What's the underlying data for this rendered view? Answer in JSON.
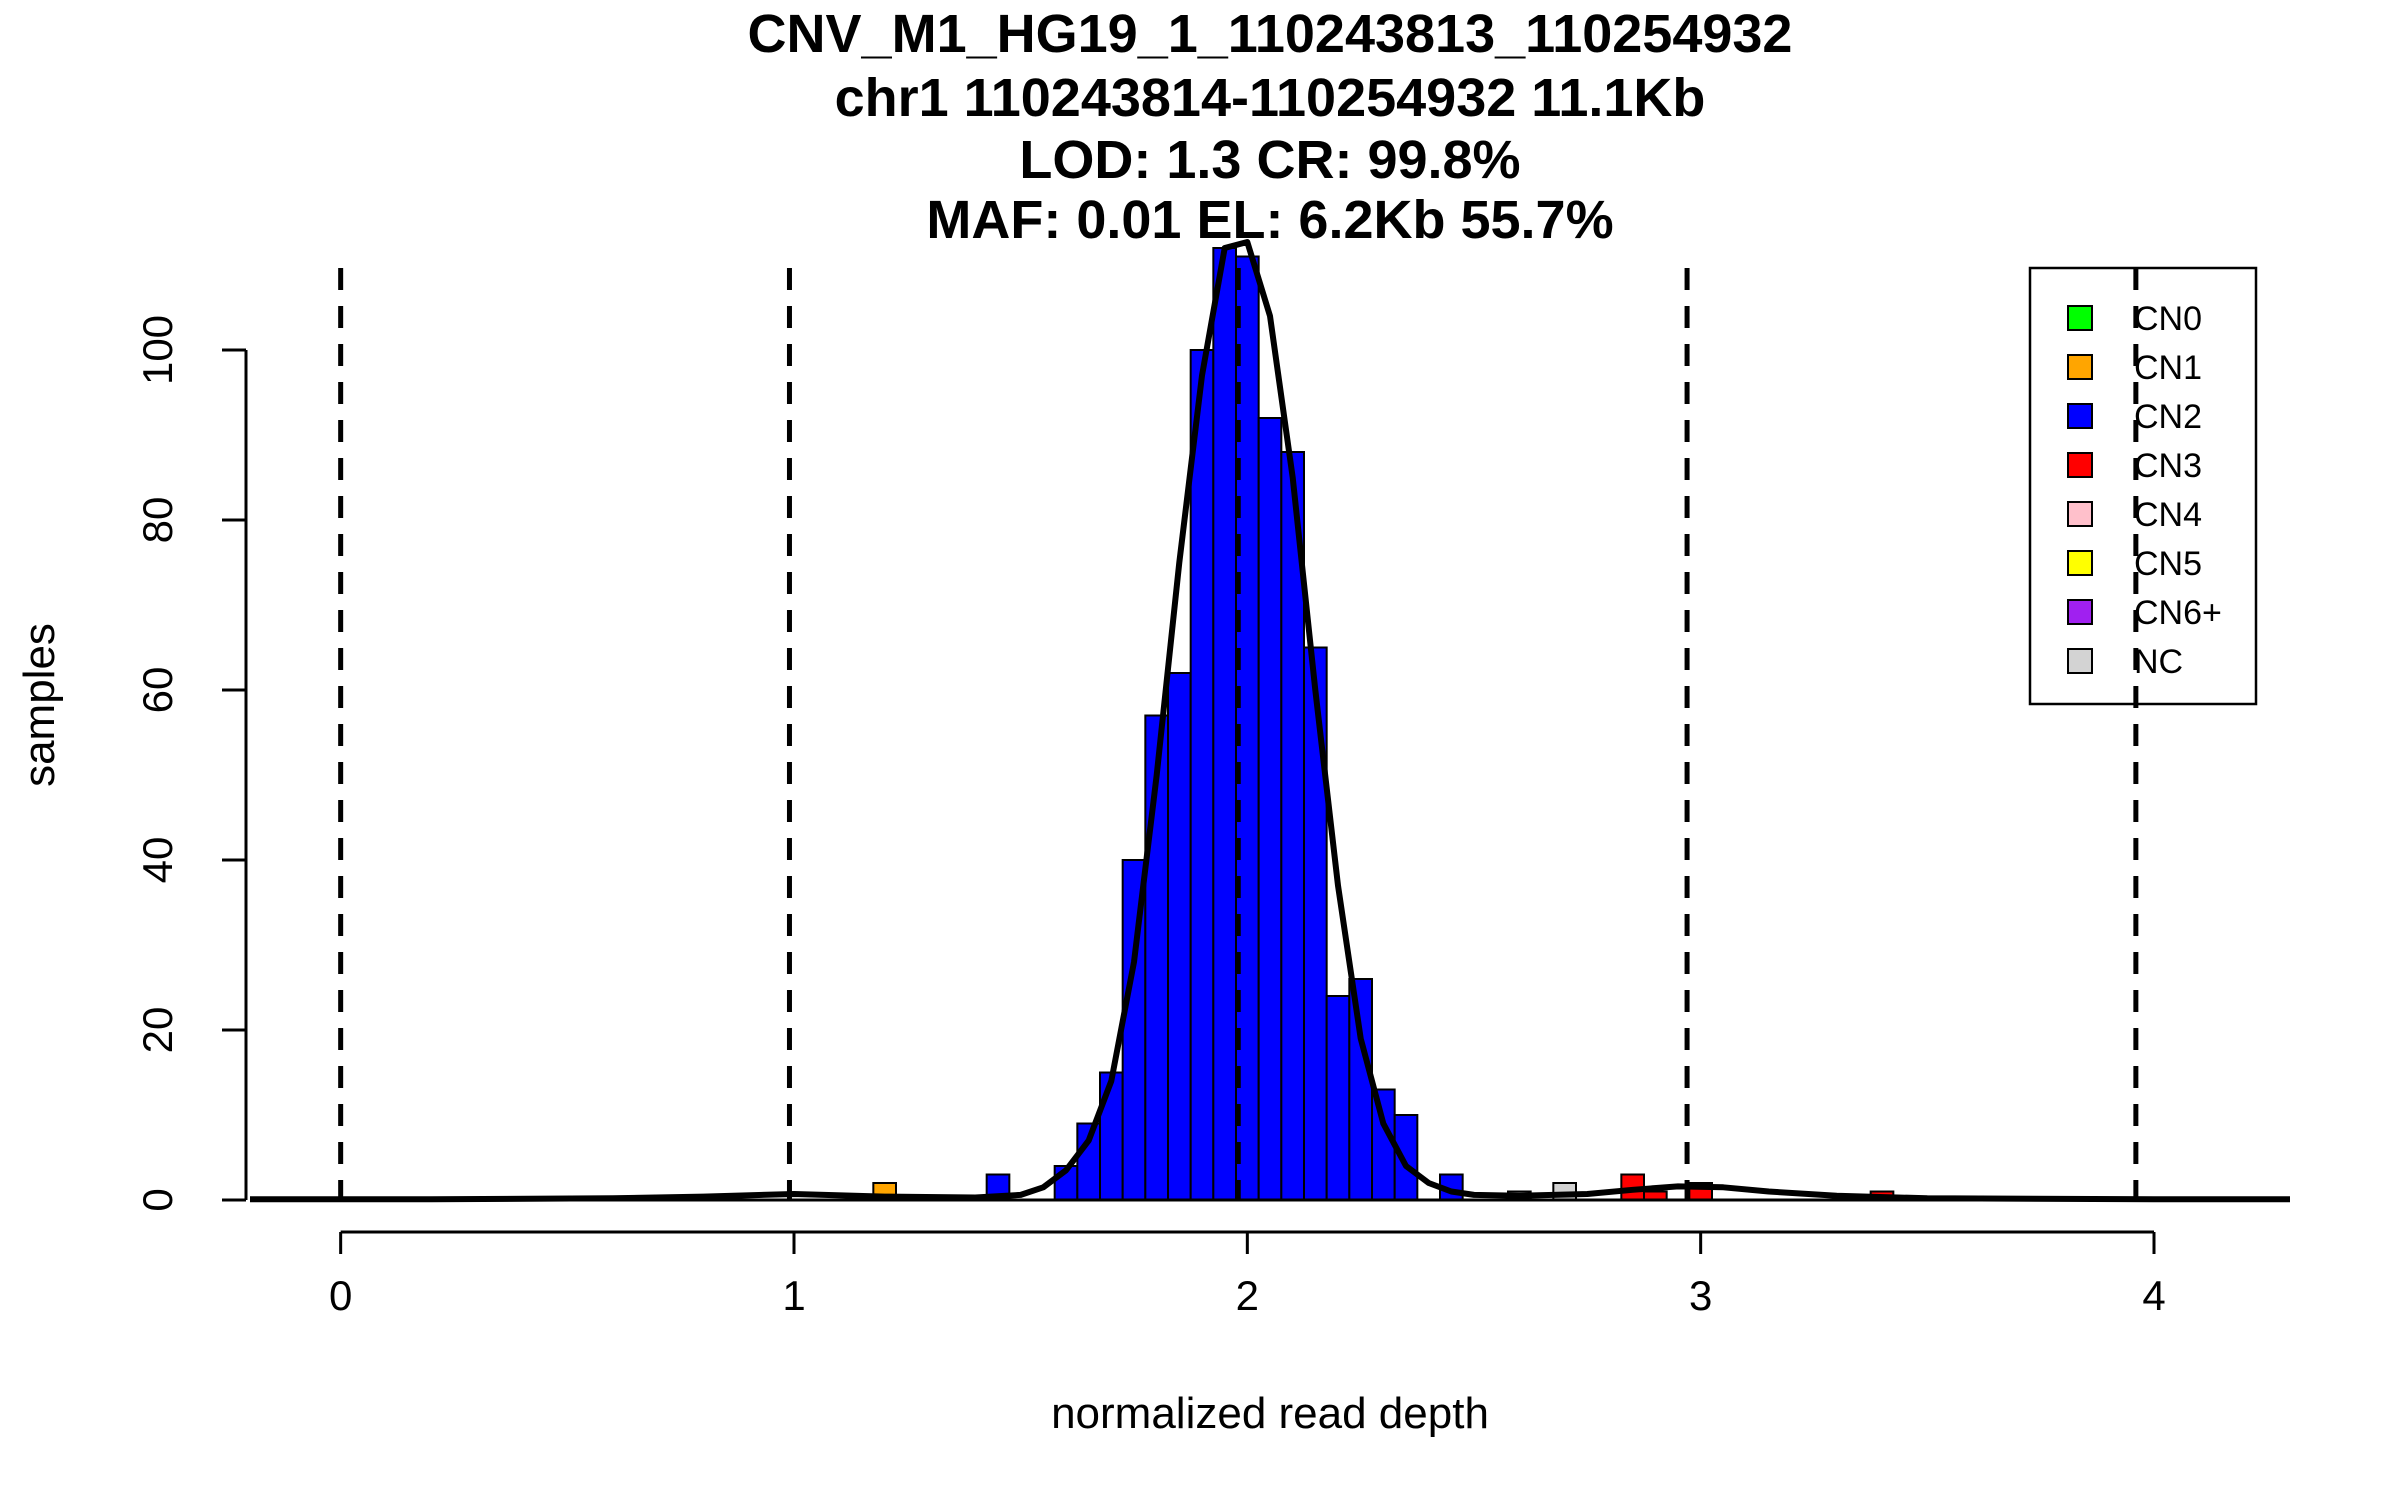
{
  "chart_data": {
    "type": "bar",
    "title_lines": [
      "CNV_M1_HG19_1_110243813_110254932",
      "chr1 110243814-110254932 11.1Kb",
      "LOD: 1.3 CR: 99.8%",
      "MAF: 0.01 EL: 6.2Kb 55.7%"
    ],
    "xlabel": "normalized read depth",
    "ylabel": "samples",
    "xlim": [
      -0.2,
      4.3
    ],
    "ylim": [
      0,
      112
    ],
    "x_ticks": [
      0,
      1,
      2,
      3,
      4
    ],
    "y_ticks": [
      0,
      20,
      40,
      60,
      80,
      100
    ],
    "bin_width": 0.05,
    "dashed_lines_x": [
      0,
      0.99,
      1.98,
      2.97,
      3.96
    ],
    "series": [
      {
        "name": "CN1",
        "color": "#FFA500",
        "bins": [
          {
            "x": 1.2,
            "count": 2
          }
        ]
      },
      {
        "name": "CN2",
        "color": "#0000FF",
        "bins": [
          {
            "x": 1.45,
            "count": 3
          },
          {
            "x": 1.6,
            "count": 4
          },
          {
            "x": 1.65,
            "count": 9
          },
          {
            "x": 1.7,
            "count": 15
          },
          {
            "x": 1.75,
            "count": 40
          },
          {
            "x": 1.8,
            "count": 57
          },
          {
            "x": 1.85,
            "count": 62
          },
          {
            "x": 1.9,
            "count": 100
          },
          {
            "x": 1.95,
            "count": 112
          },
          {
            "x": 2.0,
            "count": 111
          },
          {
            "x": 2.05,
            "count": 92
          },
          {
            "x": 2.1,
            "count": 88
          },
          {
            "x": 2.15,
            "count": 65
          },
          {
            "x": 2.2,
            "count": 24
          },
          {
            "x": 2.25,
            "count": 26
          },
          {
            "x": 2.3,
            "count": 13
          },
          {
            "x": 2.35,
            "count": 10
          },
          {
            "x": 2.45,
            "count": 3
          }
        ]
      },
      {
        "name": "CN3",
        "color": "#FF0000",
        "bins": [
          {
            "x": 2.85,
            "count": 3
          },
          {
            "x": 2.9,
            "count": 1
          },
          {
            "x": 3.0,
            "count": 2
          },
          {
            "x": 3.4,
            "count": 1
          }
        ]
      },
      {
        "name": "NC",
        "color": "#D3D3D3",
        "bins": [
          {
            "x": 2.6,
            "count": 1
          },
          {
            "x": 2.7,
            "count": 2
          }
        ]
      }
    ],
    "density_curve": [
      [
        -0.2,
        0.1
      ],
      [
        0.2,
        0.1
      ],
      [
        0.6,
        0.2
      ],
      [
        0.8,
        0.4
      ],
      [
        1.0,
        0.7
      ],
      [
        1.2,
        0.4
      ],
      [
        1.4,
        0.3
      ],
      [
        1.5,
        0.6
      ],
      [
        1.55,
        1.5
      ],
      [
        1.6,
        3.5
      ],
      [
        1.65,
        7
      ],
      [
        1.7,
        14
      ],
      [
        1.75,
        28
      ],
      [
        1.8,
        50
      ],
      [
        1.85,
        75
      ],
      [
        1.9,
        97
      ],
      [
        1.95,
        112
      ],
      [
        2.0,
        114
      ],
      [
        2.05,
        104
      ],
      [
        2.1,
        85
      ],
      [
        2.15,
        60
      ],
      [
        2.2,
        37
      ],
      [
        2.25,
        19
      ],
      [
        2.3,
        9
      ],
      [
        2.35,
        4
      ],
      [
        2.4,
        2
      ],
      [
        2.45,
        1
      ],
      [
        2.5,
        0.6
      ],
      [
        2.6,
        0.5
      ],
      [
        2.75,
        0.7
      ],
      [
        2.85,
        1.2
      ],
      [
        2.95,
        1.6
      ],
      [
        3.05,
        1.5
      ],
      [
        3.15,
        1.0
      ],
      [
        3.3,
        0.5
      ],
      [
        3.5,
        0.2
      ],
      [
        4.0,
        0.1
      ],
      [
        4.3,
        0.1
      ]
    ],
    "legend": {
      "position": "top-right",
      "entries": [
        {
          "label": "CN0",
          "color": "#00FF00"
        },
        {
          "label": "CN1",
          "color": "#FFA500"
        },
        {
          "label": "CN2",
          "color": "#0000FF"
        },
        {
          "label": "CN3",
          "color": "#FF0000"
        },
        {
          "label": "CN4",
          "color": "#FFC0CB"
        },
        {
          "label": "CN5",
          "color": "#FFFF00"
        },
        {
          "label": "CN6+",
          "color": "#A020F0"
        },
        {
          "label": "NC",
          "color": "#D3D3D3"
        }
      ]
    }
  }
}
